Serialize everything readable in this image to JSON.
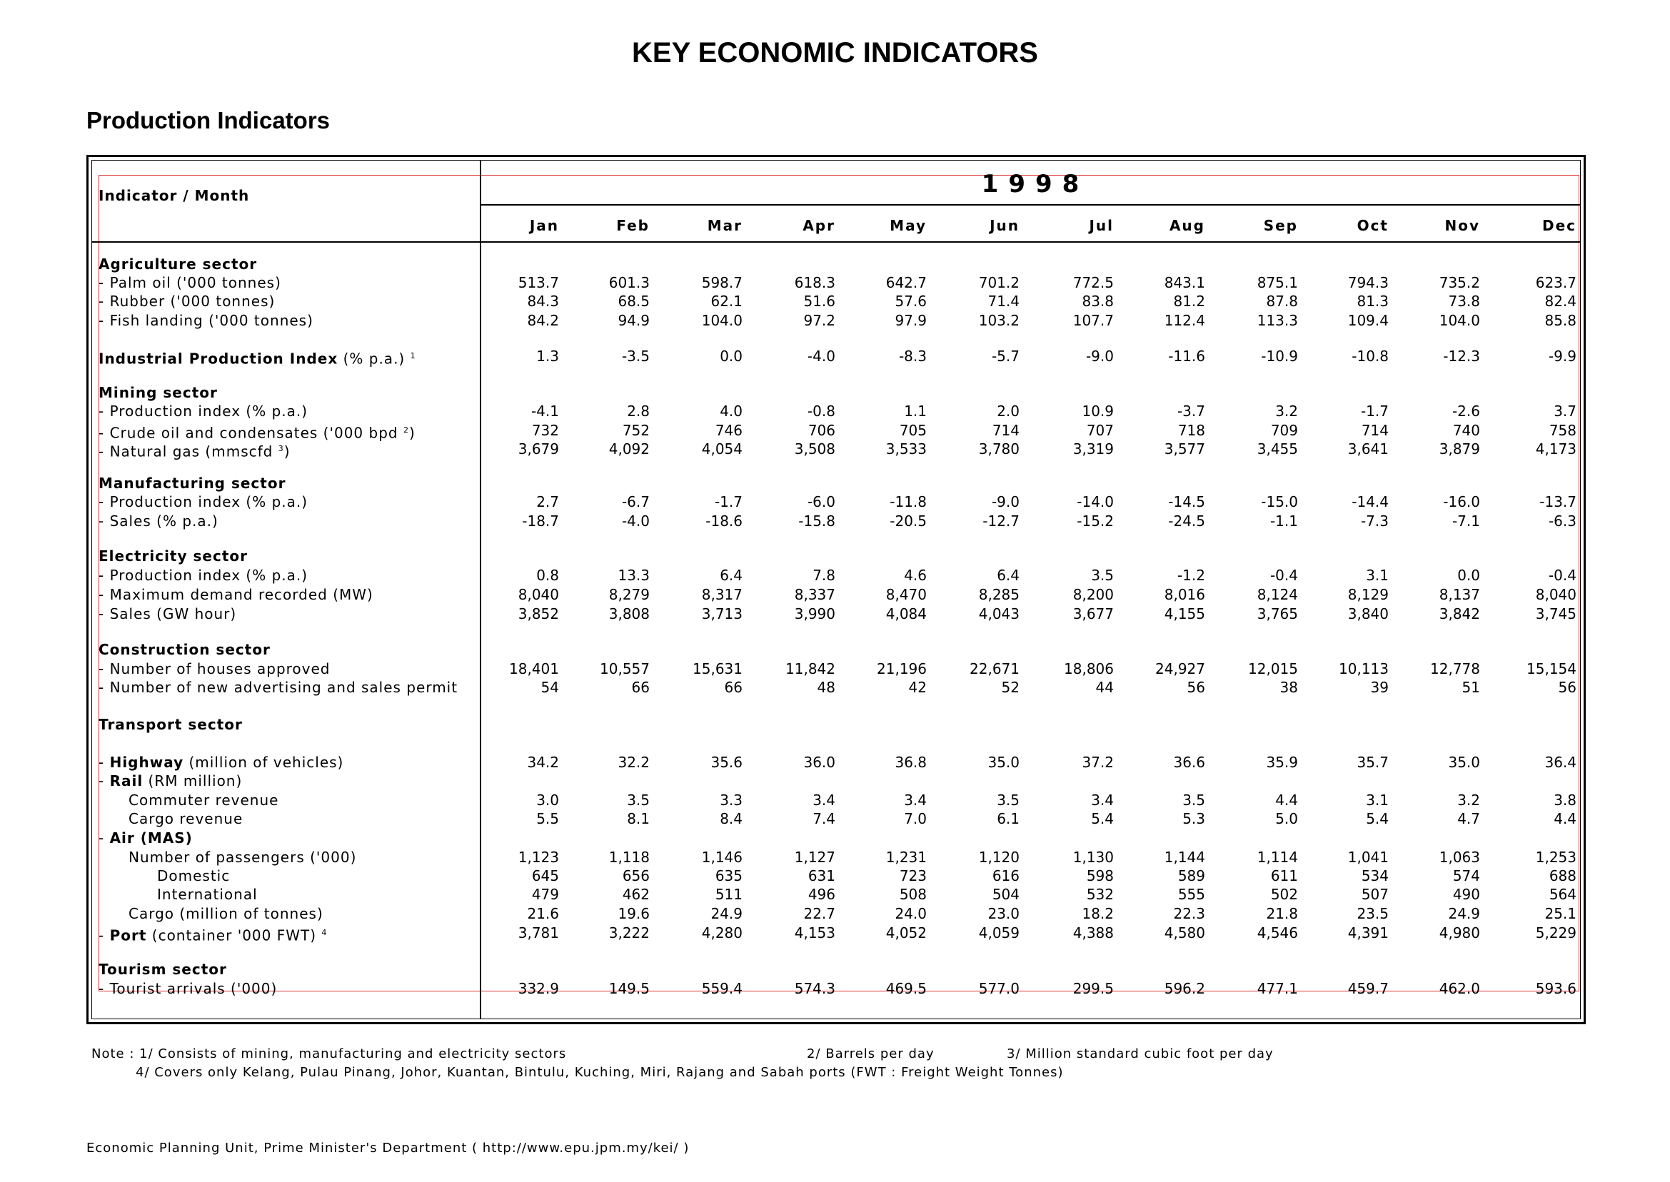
{
  "title": "KEY ECONOMIC INDICATORS",
  "subtitle": "Production Indicators",
  "table": {
    "header_label": "Indicator / Month",
    "year": "1998",
    "months": [
      "Jan",
      "Feb",
      "Mar",
      "Apr",
      "May",
      "Jun",
      "Jul",
      "Aug",
      "Sep",
      "Oct",
      "Nov",
      "Dec"
    ],
    "rows": [
      {
        "label": "Agriculture sector",
        "type": "section",
        "values": []
      },
      {
        "label": "- Palm oil ('000 tonnes)",
        "type": "item",
        "values": [
          "513.7",
          "601.3",
          "598.7",
          "618.3",
          "642.7",
          "701.2",
          "772.5",
          "843.1",
          "875.1",
          "794.3",
          "735.2",
          "623.7"
        ]
      },
      {
        "label": "- Rubber ('000 tonnes)",
        "type": "item",
        "values": [
          "84.3",
          "68.5",
          "62.1",
          "51.6",
          "57.6",
          "71.4",
          "83.8",
          "81.2",
          "87.8",
          "81.3",
          "73.8",
          "82.4"
        ]
      },
      {
        "label": "- Fish landing ('000 tonnes)",
        "type": "item",
        "values": [
          "84.2",
          "94.9",
          "104.0",
          "97.2",
          "97.9",
          "103.2",
          "107.7",
          "112.4",
          "113.3",
          "109.4",
          "104.0",
          "85.8"
        ]
      },
      {
        "label": "Industrial Production Index",
        "suffix": " (% p.a.)",
        "sup": "1",
        "type": "boldlead",
        "values": [
          "1.3",
          "-3.5",
          "0.0",
          "-4.0",
          "-8.3",
          "-5.7",
          "-9.0",
          "-11.6",
          "-10.9",
          "-10.8",
          "-12.3",
          "-9.9"
        ]
      },
      {
        "label": "Mining sector",
        "type": "section",
        "values": []
      },
      {
        "label": "- Production index (% p.a.)",
        "type": "item",
        "values": [
          "-4.1",
          "2.8",
          "4.0",
          "-0.8",
          "1.1",
          "2.0",
          "10.9",
          "-3.7",
          "3.2",
          "-1.7",
          "-2.6",
          "3.7"
        ]
      },
      {
        "label": "- Crude oil and condensates ('000 bpd",
        "sup": "2",
        "suffix_after_sup": ")",
        "type": "item",
        "values": [
          "732",
          "752",
          "746",
          "706",
          "705",
          "714",
          "707",
          "718",
          "709",
          "714",
          "740",
          "758"
        ]
      },
      {
        "label": "- Natural gas (mmscfd",
        "sup": "3",
        "suffix_after_sup": ")",
        "type": "item",
        "values": [
          "3,679",
          "4,092",
          "4,054",
          "3,508",
          "3,533",
          "3,780",
          "3,319",
          "3,577",
          "3,455",
          "3,641",
          "3,879",
          "4,173"
        ]
      },
      {
        "label": "Manufacturing sector",
        "type": "section",
        "values": []
      },
      {
        "label": "- Production index (% p.a.)",
        "type": "item",
        "values": [
          "2.7",
          "-6.7",
          "-1.7",
          "-6.0",
          "-11.8",
          "-9.0",
          "-14.0",
          "-14.5",
          "-15.0",
          "-14.4",
          "-16.0",
          "-13.7"
        ]
      },
      {
        "label": "- Sales (% p.a.)",
        "type": "item",
        "values": [
          "-18.7",
          "-4.0",
          "-18.6",
          "-15.8",
          "-20.5",
          "-12.7",
          "-15.2",
          "-24.5",
          "-1.1",
          "-7.3",
          "-7.1",
          "-6.3"
        ]
      },
      {
        "label": "Electricity sector",
        "type": "section",
        "values": []
      },
      {
        "label": "- Production index (% p.a.)",
        "type": "item",
        "values": [
          "0.8",
          "13.3",
          "6.4",
          "7.8",
          "4.6",
          "6.4",
          "3.5",
          "-1.2",
          "-0.4",
          "3.1",
          "0.0",
          "-0.4"
        ]
      },
      {
        "label": "- Maximum demand recorded (MW)",
        "type": "item",
        "values": [
          "8,040",
          "8,279",
          "8,317",
          "8,337",
          "8,470",
          "8,285",
          "8,200",
          "8,016",
          "8,124",
          "8,129",
          "8,137",
          "8,040"
        ]
      },
      {
        "label": "- Sales (GW hour)",
        "type": "item",
        "values": [
          "3,852",
          "3,808",
          "3,713",
          "3,990",
          "4,084",
          "4,043",
          "3,677",
          "4,155",
          "3,765",
          "3,840",
          "3,842",
          "3,745"
        ]
      },
      {
        "label": "Construction sector",
        "type": "section",
        "values": []
      },
      {
        "label": "- Number of houses approved",
        "type": "item",
        "values": [
          "18,401",
          "10,557",
          "15,631",
          "11,842",
          "21,196",
          "22,671",
          "18,806",
          "24,927",
          "12,015",
          "10,113",
          "12,778",
          "15,154"
        ]
      },
      {
        "label": "- Number of new advertising and sales permit",
        "type": "item",
        "values": [
          "54",
          "66",
          "66",
          "48",
          "42",
          "52",
          "44",
          "56",
          "38",
          "39",
          "51",
          "56"
        ]
      },
      {
        "label": "Transport sector",
        "type": "section",
        "values": []
      },
      {
        "label": "Highway",
        "prefix": "- ",
        "suffix": " (million of vehicles)",
        "type": "boldlead",
        "values": [
          "34.2",
          "32.2",
          "35.6",
          "36.0",
          "36.8",
          "35.0",
          "37.2",
          "36.6",
          "35.9",
          "35.7",
          "35.0",
          "36.4"
        ]
      },
      {
        "label": "Rail",
        "prefix": "- ",
        "suffix": " (RM million)",
        "type": "boldlead",
        "values": []
      },
      {
        "label": "Commuter revenue",
        "type": "sub",
        "values": [
          "3.0",
          "3.5",
          "3.3",
          "3.4",
          "3.4",
          "3.5",
          "3.4",
          "3.5",
          "4.4",
          "3.1",
          "3.2",
          "3.8"
        ]
      },
      {
        "label": "Cargo revenue",
        "type": "sub",
        "values": [
          "5.5",
          "8.1",
          "8.4",
          "7.4",
          "7.0",
          "6.1",
          "5.4",
          "5.3",
          "5.0",
          "5.4",
          "4.7",
          "4.4"
        ]
      },
      {
        "label": "Air (MAS)",
        "prefix": "- ",
        "suffix": "",
        "type": "boldlead",
        "values": []
      },
      {
        "label": "Number of passengers ('000)",
        "type": "sub",
        "values": [
          "1,123",
          "1,118",
          "1,146",
          "1,127",
          "1,231",
          "1,120",
          "1,130",
          "1,144",
          "1,114",
          "1,041",
          "1,063",
          "1,253"
        ]
      },
      {
        "label": "Domestic",
        "type": "subsub",
        "values": [
          "645",
          "656",
          "635",
          "631",
          "723",
          "616",
          "598",
          "589",
          "611",
          "534",
          "574",
          "688"
        ]
      },
      {
        "label": "International",
        "type": "subsub",
        "values": [
          "479",
          "462",
          "511",
          "496",
          "508",
          "504",
          "532",
          "555",
          "502",
          "507",
          "490",
          "564"
        ]
      },
      {
        "label": "Cargo  (million of tonnes)",
        "type": "sub",
        "values": [
          "21.6",
          "19.6",
          "24.9",
          "22.7",
          "24.0",
          "23.0",
          "18.2",
          "22.3",
          "21.8",
          "23.5",
          "24.9",
          "25.1"
        ]
      },
      {
        "label": "Port",
        "prefix": "- ",
        "suffix": " (container '000 FWT)",
        "sup": "4",
        "type": "boldlead",
        "values": [
          "3,781",
          "3,222",
          "4,280",
          "4,153",
          "4,052",
          "4,059",
          "4,388",
          "4,580",
          "4,546",
          "4,391",
          "4,980",
          "5,229"
        ]
      },
      {
        "label": "Tourism sector",
        "type": "section",
        "values": []
      },
      {
        "label": "- Tourist arrivals ('000)",
        "type": "item",
        "values": [
          "332.9",
          "149.5",
          "559.4",
          "574.3",
          "469.5",
          "577.0",
          "299.5",
          "596.2",
          "477.1",
          "459.7",
          "462.0",
          "593.6"
        ]
      }
    ]
  },
  "notes": {
    "line1_a": "Note : 1/ Consists of mining, manufacturing and electricity sectors",
    "line1_b": "2/ Barrels per day",
    "line1_c": "3/ Million standard cubic foot per day",
    "line2": "4/ Covers only Kelang, Pulau Pinang, Johor, Kuantan, Bintulu, Kuching, Miri, Rajang and Sabah ports (FWT : Freight Weight Tonnes)"
  },
  "footer": "Economic Planning Unit, Prime Minister's Department ( http://www.epu.jpm.my/kei/ )"
}
